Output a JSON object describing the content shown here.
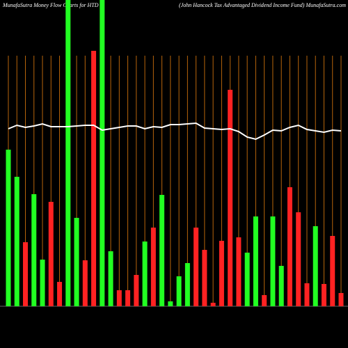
{
  "chart_data": {
    "type": "bar",
    "title": "MunafaSutra  Money Flow  Charts for HTD",
    "subtitle": "(John  Hancock Tax Advantaged Dividend Income   Fund) MunafaSutra.com",
    "ylim": [
      0,
      440
    ],
    "grid": true,
    "grid_color": "#b8650b",
    "bar_colors": [
      "#22ff22",
      "#22ff22",
      "#ff2222",
      "#22ff22",
      "#22ff22",
      "#ff2222",
      "#ff2222",
      "#22ff22",
      "#22ff22",
      "#ff2222",
      "#ff2222",
      "#22ff22",
      "#22ff22",
      "#ff2222",
      "#ff2222",
      "#ff2222",
      "#22ff22",
      "#ff2222",
      "#22ff22",
      "#22ff22",
      "#22ff22",
      "#22ff22",
      "#ff2222",
      "#ff2222",
      "#ff2222",
      "#ff2222",
      "#ff2222",
      "#ff2222",
      "#22ff22",
      "#22ff22",
      "#ff2222",
      "#22ff22",
      "#22ff22",
      "#ff2222",
      "#ff2222",
      "#ff2222",
      "#22ff22",
      "#ff2222",
      "#ff2222",
      "#ff2222"
    ],
    "values": [
      225,
      186,
      92,
      161,
      67,
      150,
      35,
      440,
      127,
      66,
      367,
      440,
      79,
      23,
      23,
      45,
      93,
      113,
      160,
      7,
      43,
      62,
      113,
      81,
      5,
      94,
      311,
      99,
      77,
      129,
      16,
      129,
      58,
      171,
      135,
      33,
      115,
      32,
      101,
      19
    ],
    "line_color": "#ffffff",
    "line_values": [
      255,
      260,
      257,
      259,
      262,
      258,
      258,
      258,
      259,
      260,
      260,
      253,
      255,
      257,
      259,
      259,
      255,
      258,
      257,
      261,
      261,
      262,
      263,
      256,
      255,
      254,
      255,
      251,
      243,
      240,
      246,
      253,
      252,
      257,
      260,
      254,
      252,
      250,
      253,
      252
    ]
  }
}
